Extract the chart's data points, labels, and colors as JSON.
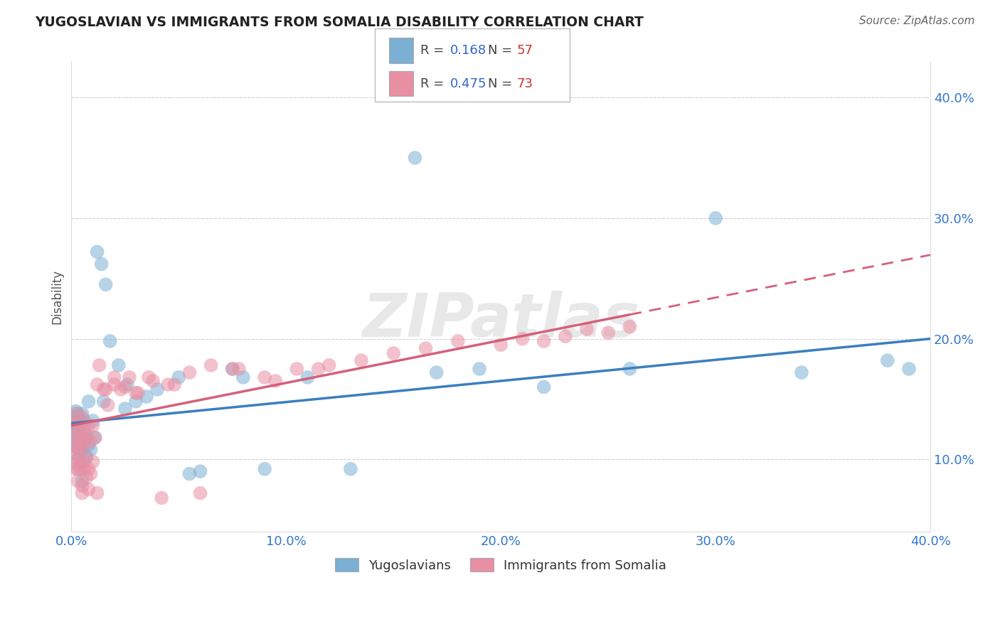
{
  "title": "YUGOSLAVIAN VS IMMIGRANTS FROM SOMALIA DISABILITY CORRELATION CHART",
  "source": "Source: ZipAtlas.com",
  "ylabel": "Disability",
  "xlim": [
    0.0,
    0.4
  ],
  "ylim": [
    0.04,
    0.43
  ],
  "xticks": [
    0.0,
    0.1,
    0.2,
    0.3,
    0.4
  ],
  "yticks": [
    0.1,
    0.2,
    0.3,
    0.4
  ],
  "ytick_labels": [
    "10.0%",
    "20.0%",
    "30.0%",
    "40.0%"
  ],
  "xtick_labels": [
    "0.0%",
    "10.0%",
    "20.0%",
    "30.0%",
    "40.0%"
  ],
  "grid_color": "#cccccc",
  "background_color": "#ffffff",
  "series1_label": "Yugoslavians",
  "series1_color": "#7bafd4",
  "series1_line_color": "#3a7fbf",
  "series2_label": "Immigrants from Somalia",
  "series2_color": "#e88fa3",
  "series2_line_color": "#d4607a",
  "legend_R_color": "#3366cc",
  "legend_N_color": "#cc3333",
  "yug_x": [
    0.001,
    0.001,
    0.001,
    0.002,
    0.002,
    0.002,
    0.002,
    0.003,
    0.003,
    0.003,
    0.003,
    0.004,
    0.004,
    0.004,
    0.004,
    0.005,
    0.005,
    0.005,
    0.005,
    0.006,
    0.006,
    0.006,
    0.007,
    0.007,
    0.008,
    0.008,
    0.009,
    0.01,
    0.011,
    0.012,
    0.014,
    0.016,
    0.018,
    0.022,
    0.026,
    0.03,
    0.035,
    0.04,
    0.05,
    0.06,
    0.075,
    0.09,
    0.11,
    0.13,
    0.16,
    0.19,
    0.22,
    0.26,
    0.3,
    0.34,
    0.38,
    0.015,
    0.025,
    0.055,
    0.08,
    0.17,
    0.39
  ],
  "yug_y": [
    0.135,
    0.125,
    0.115,
    0.14,
    0.12,
    0.11,
    0.13,
    0.1,
    0.125,
    0.138,
    0.115,
    0.092,
    0.118,
    0.132,
    0.108,
    0.082,
    0.108,
    0.138,
    0.122,
    0.098,
    0.118,
    0.132,
    0.102,
    0.12,
    0.112,
    0.148,
    0.108,
    0.132,
    0.118,
    0.272,
    0.262,
    0.245,
    0.198,
    0.178,
    0.162,
    0.148,
    0.152,
    0.158,
    0.168,
    0.09,
    0.175,
    0.092,
    0.168,
    0.092,
    0.35,
    0.175,
    0.16,
    0.175,
    0.3,
    0.172,
    0.182,
    0.148,
    0.142,
    0.088,
    0.168,
    0.172,
    0.175
  ],
  "som_x": [
    0.0,
    0.001,
    0.001,
    0.001,
    0.002,
    0.002,
    0.002,
    0.002,
    0.003,
    0.003,
    0.003,
    0.003,
    0.004,
    0.004,
    0.004,
    0.005,
    0.005,
    0.005,
    0.005,
    0.006,
    0.006,
    0.006,
    0.007,
    0.007,
    0.007,
    0.008,
    0.008,
    0.009,
    0.009,
    0.01,
    0.01,
    0.011,
    0.012,
    0.013,
    0.015,
    0.017,
    0.02,
    0.023,
    0.027,
    0.031,
    0.036,
    0.042,
    0.048,
    0.055,
    0.065,
    0.078,
    0.09,
    0.105,
    0.12,
    0.135,
    0.15,
    0.165,
    0.18,
    0.2,
    0.21,
    0.22,
    0.23,
    0.24,
    0.25,
    0.26,
    0.005,
    0.008,
    0.012,
    0.016,
    0.02,
    0.025,
    0.03,
    0.038,
    0.045,
    0.06,
    0.075,
    0.095,
    0.115
  ],
  "som_y": [
    0.132,
    0.128,
    0.112,
    0.098,
    0.138,
    0.118,
    0.105,
    0.092,
    0.122,
    0.108,
    0.092,
    0.082,
    0.112,
    0.098,
    0.13,
    0.078,
    0.098,
    0.118,
    0.135,
    0.092,
    0.112,
    0.125,
    0.085,
    0.102,
    0.118,
    0.092,
    0.128,
    0.088,
    0.115,
    0.098,
    0.128,
    0.118,
    0.162,
    0.178,
    0.158,
    0.145,
    0.168,
    0.158,
    0.168,
    0.155,
    0.168,
    0.068,
    0.162,
    0.172,
    0.178,
    0.175,
    0.168,
    0.175,
    0.178,
    0.182,
    0.188,
    0.192,
    0.198,
    0.195,
    0.2,
    0.198,
    0.202,
    0.208,
    0.205,
    0.21,
    0.072,
    0.075,
    0.072,
    0.158,
    0.162,
    0.16,
    0.155,
    0.165,
    0.162,
    0.072,
    0.175,
    0.165,
    0.175
  ]
}
